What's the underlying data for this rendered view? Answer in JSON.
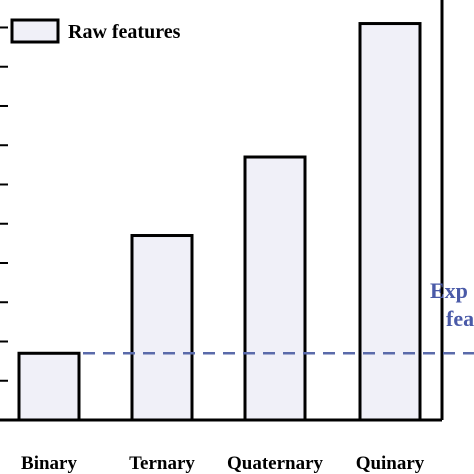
{
  "chart_data": {
    "type": "bar",
    "categories": [
      "Binary",
      "Ternary",
      "Quaternary",
      "Quinary"
    ],
    "series": [
      {
        "name": "Raw features",
        "values": [
          1.7,
          4.7,
          6.7,
          10.1
        ]
      }
    ],
    "reference_line": {
      "value": 1.7,
      "style": "dashed",
      "color": "#5a6aaa"
    },
    "annotation_lines": [
      "Exp",
      "fea"
    ],
    "ylim": [
      0,
      10.7
    ],
    "xlabel": "",
    "ylabel": "",
    "title": "",
    "legend": {
      "position": "top-left"
    },
    "grid": false,
    "bar_fill": "#f0f0f8",
    "bar_stroke": "#000000",
    "annotation_color": "#4a5aa8"
  }
}
